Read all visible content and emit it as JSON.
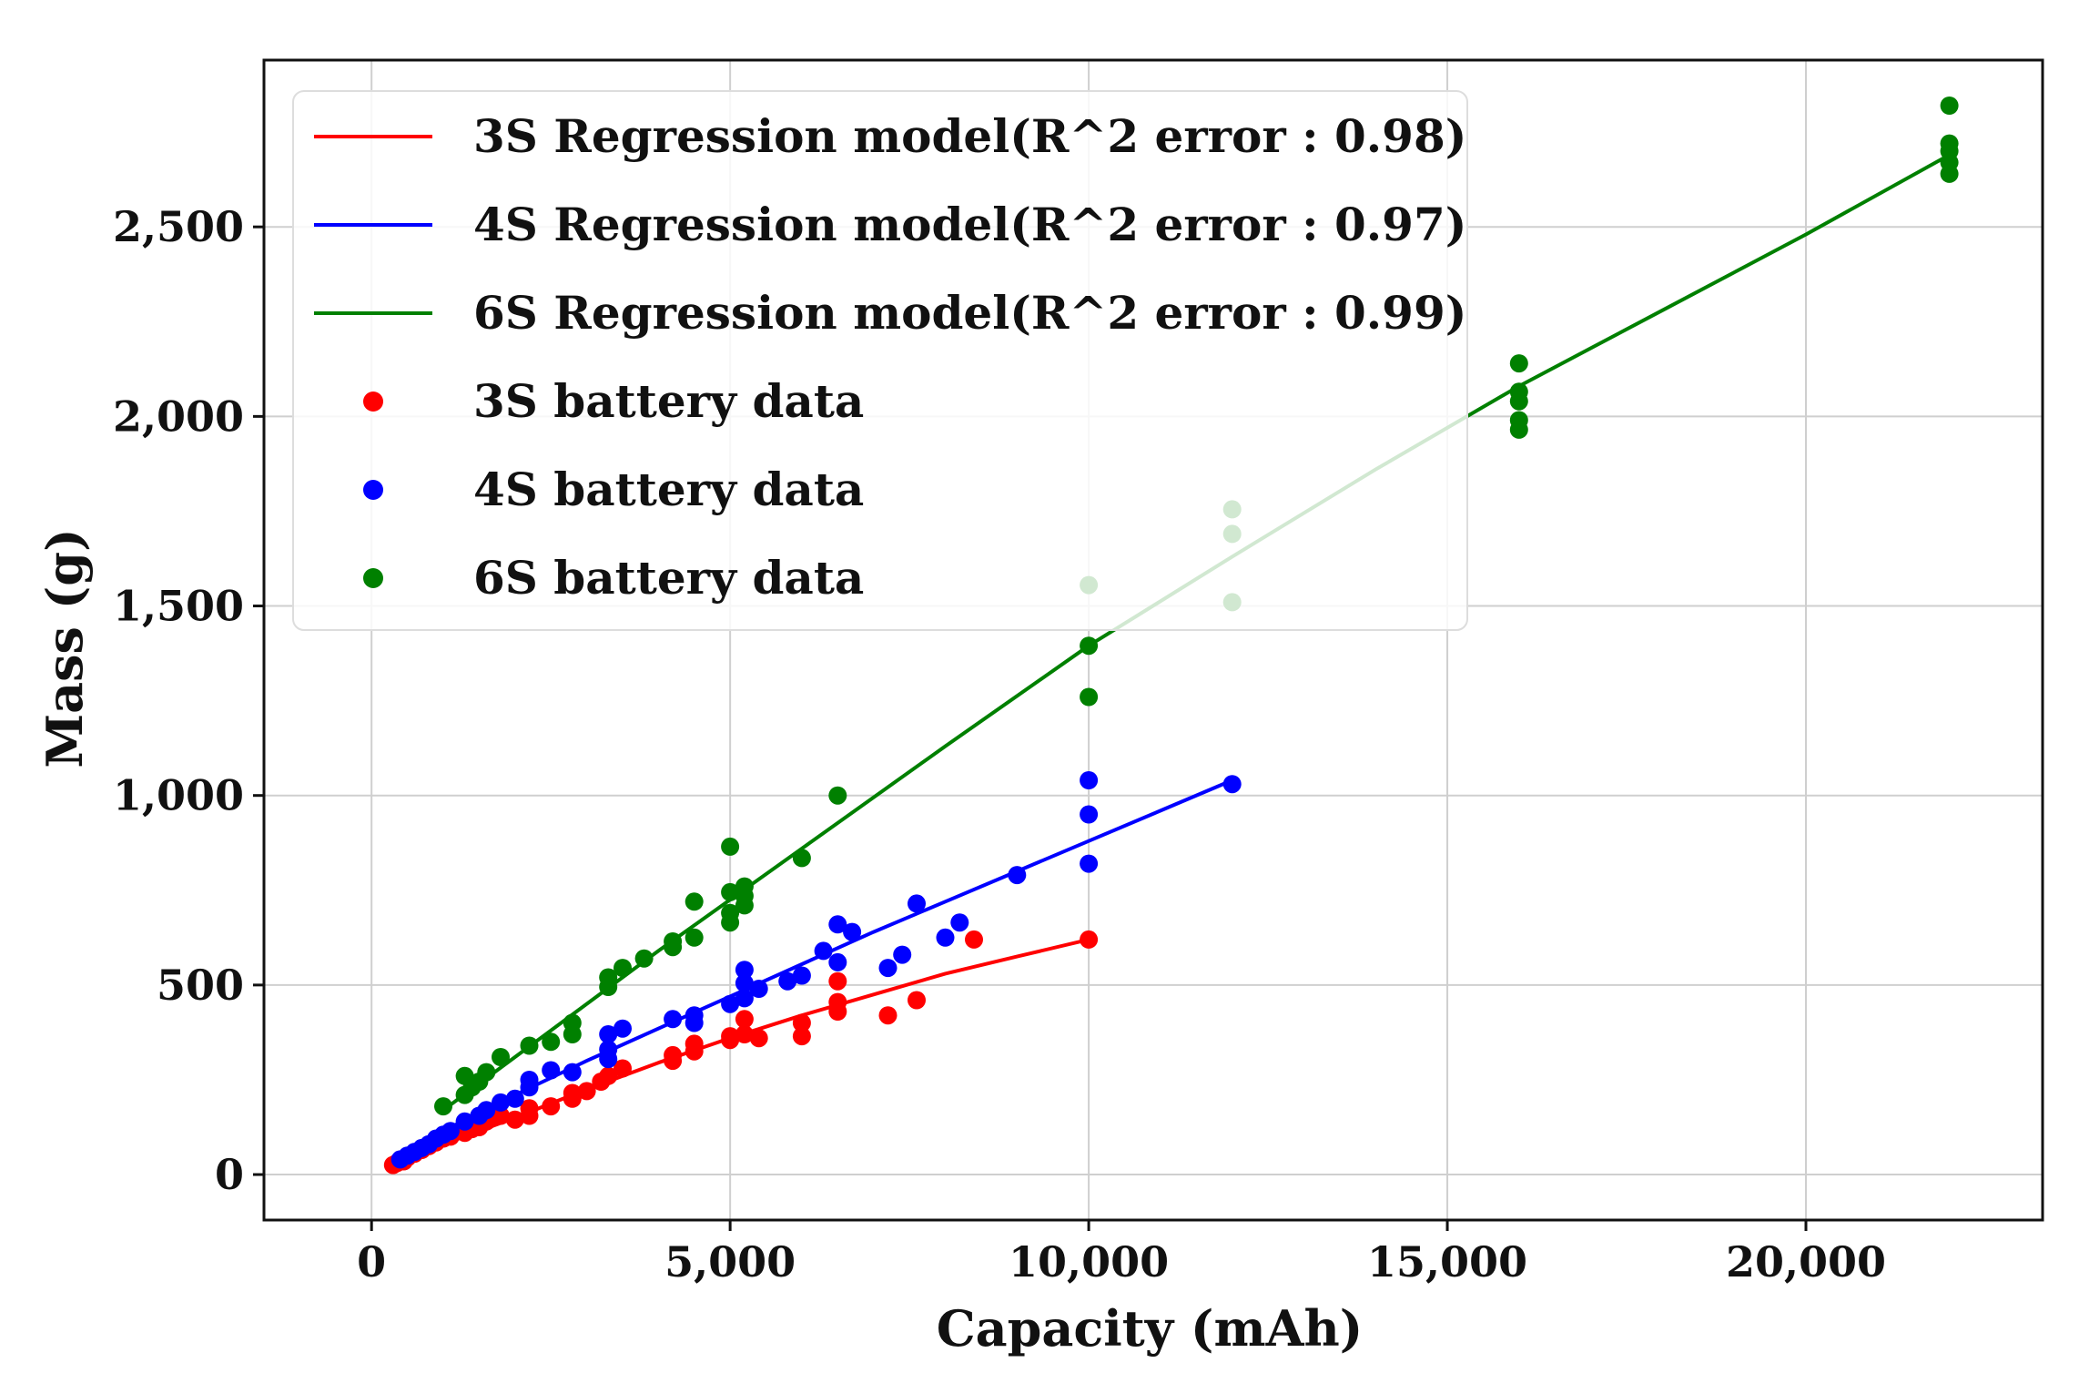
{
  "chart_data": {
    "type": "scatter",
    "title": "",
    "xlabel": "Capacity (mAh)",
    "ylabel": "Mass (g)",
    "xlim": [
      -1500,
      23300
    ],
    "ylim": [
      -120,
      2940
    ],
    "xticks": [
      0,
      5000,
      10000,
      15000,
      20000
    ],
    "yticks": [
      0,
      500,
      1000,
      1500,
      2000,
      2500
    ],
    "xtick_labels": [
      "0",
      "5,000",
      "10,000",
      "15,000",
      "20,000"
    ],
    "ytick_labels": [
      "0",
      "500",
      "1,000",
      "1,500",
      "2,000",
      "2,500"
    ],
    "grid": true,
    "legend_position": "upper-left",
    "legend": [
      {
        "label": "3S Regression model(R^2 error : 0.98)",
        "kind": "line",
        "color": "#ff0000"
      },
      {
        "label": "4S Regression model(R^2 error : 0.97)",
        "kind": "line",
        "color": "#0000ff"
      },
      {
        "label": "6S Regression model(R^2 error : 0.99)",
        "kind": "line",
        "color": "#008000"
      },
      {
        "label": "3S battery data",
        "kind": "marker",
        "color": "#ff0000"
      },
      {
        "label": "4S battery data",
        "kind": "marker",
        "color": "#0000ff"
      },
      {
        "label": "6S battery data",
        "kind": "marker",
        "color": "#008000"
      }
    ],
    "series": [
      {
        "name": "3S battery data",
        "kind": "scatter",
        "color": "#ff0000",
        "points": [
          [
            300,
            25
          ],
          [
            350,
            30
          ],
          [
            450,
            35
          ],
          [
            500,
            45
          ],
          [
            600,
            55
          ],
          [
            700,
            65
          ],
          [
            800,
            75
          ],
          [
            900,
            85
          ],
          [
            1000,
            95
          ],
          [
            1100,
            100
          ],
          [
            1300,
            110
          ],
          [
            1400,
            120
          ],
          [
            1500,
            125
          ],
          [
            1600,
            140
          ],
          [
            1800,
            155
          ],
          [
            2000,
            145
          ],
          [
            2200,
            155
          ],
          [
            2200,
            175
          ],
          [
            2500,
            180
          ],
          [
            2800,
            200
          ],
          [
            2800,
            215
          ],
          [
            3000,
            220
          ],
          [
            3200,
            245
          ],
          [
            3300,
            260
          ],
          [
            3500,
            280
          ],
          [
            4200,
            300
          ],
          [
            4200,
            315
          ],
          [
            4500,
            325
          ],
          [
            4500,
            345
          ],
          [
            5000,
            355
          ],
          [
            5000,
            365
          ],
          [
            5200,
            370
          ],
          [
            5200,
            410
          ],
          [
            5400,
            360
          ],
          [
            6000,
            365
          ],
          [
            6000,
            400
          ],
          [
            6500,
            430
          ],
          [
            6500,
            455
          ],
          [
            6500,
            510
          ],
          [
            7200,
            420
          ],
          [
            7600,
            460
          ],
          [
            8400,
            620
          ],
          [
            10000,
            620
          ]
        ]
      },
      {
        "name": "4S battery data",
        "kind": "scatter",
        "color": "#0000ff",
        "points": [
          [
            400,
            40
          ],
          [
            500,
            50
          ],
          [
            600,
            60
          ],
          [
            700,
            70
          ],
          [
            800,
            80
          ],
          [
            900,
            95
          ],
          [
            1000,
            105
          ],
          [
            1100,
            115
          ],
          [
            1300,
            140
          ],
          [
            1500,
            155
          ],
          [
            1600,
            170
          ],
          [
            1800,
            190
          ],
          [
            2000,
            200
          ],
          [
            2200,
            230
          ],
          [
            2200,
            250
          ],
          [
            2500,
            275
          ],
          [
            2800,
            270
          ],
          [
            3300,
            305
          ],
          [
            3300,
            330
          ],
          [
            3300,
            370
          ],
          [
            3500,
            385
          ],
          [
            4200,
            410
          ],
          [
            4500,
            400
          ],
          [
            4500,
            420
          ],
          [
            5000,
            450
          ],
          [
            5200,
            465
          ],
          [
            5200,
            505
          ],
          [
            5200,
            540
          ],
          [
            5400,
            490
          ],
          [
            5800,
            510
          ],
          [
            6000,
            525
          ],
          [
            6300,
            590
          ],
          [
            6500,
            560
          ],
          [
            6500,
            660
          ],
          [
            6700,
            640
          ],
          [
            7200,
            545
          ],
          [
            7400,
            580
          ],
          [
            7600,
            715
          ],
          [
            8000,
            625
          ],
          [
            8200,
            665
          ],
          [
            9000,
            790
          ],
          [
            10000,
            820
          ],
          [
            10000,
            950
          ],
          [
            10000,
            1040
          ],
          [
            12000,
            1030
          ]
        ]
      },
      {
        "name": "6S battery data",
        "kind": "scatter",
        "color": "#008000",
        "points": [
          [
            1000,
            180
          ],
          [
            1300,
            210
          ],
          [
            1300,
            260
          ],
          [
            1400,
            230
          ],
          [
            1500,
            245
          ],
          [
            1600,
            270
          ],
          [
            1800,
            310
          ],
          [
            2200,
            340
          ],
          [
            2500,
            350
          ],
          [
            2800,
            370
          ],
          [
            2800,
            400
          ],
          [
            3300,
            495
          ],
          [
            3300,
            520
          ],
          [
            3500,
            545
          ],
          [
            3800,
            570
          ],
          [
            4200,
            600
          ],
          [
            4200,
            615
          ],
          [
            4500,
            625
          ],
          [
            4500,
            720
          ],
          [
            5000,
            665
          ],
          [
            5000,
            690
          ],
          [
            5000,
            745
          ],
          [
            5000,
            865
          ],
          [
            5200,
            710
          ],
          [
            5200,
            735
          ],
          [
            5200,
            760
          ],
          [
            6000,
            835
          ],
          [
            6500,
            1000
          ],
          [
            10000,
            1260
          ],
          [
            10000,
            1395
          ],
          [
            10000,
            1555
          ],
          [
            12000,
            1510
          ],
          [
            12000,
            1690
          ],
          [
            12000,
            1755
          ],
          [
            16000,
            1965
          ],
          [
            16000,
            1990
          ],
          [
            16000,
            2040
          ],
          [
            16000,
            2065
          ],
          [
            16000,
            2140
          ],
          [
            22000,
            2640
          ],
          [
            22000,
            2670
          ],
          [
            22000,
            2700
          ],
          [
            22000,
            2720
          ],
          [
            22000,
            2820
          ]
        ]
      },
      {
        "name": "3S Regression model(R^2 error : 0.98)",
        "kind": "line",
        "color": "#ff0000",
        "points": [
          [
            300,
            30
          ],
          [
            1000,
            80
          ],
          [
            2000,
            150
          ],
          [
            3000,
            225
          ],
          [
            4000,
            295
          ],
          [
            5000,
            360
          ],
          [
            6000,
            420
          ],
          [
            7000,
            475
          ],
          [
            8000,
            530
          ],
          [
            9000,
            575
          ],
          [
            10000,
            620
          ]
        ]
      },
      {
        "name": "4S Regression model(R^2 error : 0.97)",
        "kind": "line",
        "color": "#0000ff",
        "points": [
          [
            400,
            55
          ],
          [
            1000,
            115
          ],
          [
            2000,
            210
          ],
          [
            3000,
            300
          ],
          [
            4000,
            385
          ],
          [
            5000,
            470
          ],
          [
            6000,
            555
          ],
          [
            7000,
            640
          ],
          [
            8000,
            720
          ],
          [
            9000,
            800
          ],
          [
            10000,
            880
          ],
          [
            11000,
            960
          ],
          [
            12000,
            1040
          ]
        ]
      },
      {
        "name": "6S Regression model(R^2 error : 0.99)",
        "kind": "line",
        "color": "#008000",
        "points": [
          [
            1000,
            170
          ],
          [
            2000,
            310
          ],
          [
            4000,
            590
          ],
          [
            6000,
            860
          ],
          [
            8000,
            1130
          ],
          [
            10000,
            1395
          ],
          [
            12000,
            1630
          ],
          [
            14000,
            1860
          ],
          [
            16000,
            2080
          ],
          [
            18000,
            2280
          ],
          [
            20000,
            2480
          ],
          [
            22000,
            2690
          ]
        ]
      }
    ]
  }
}
